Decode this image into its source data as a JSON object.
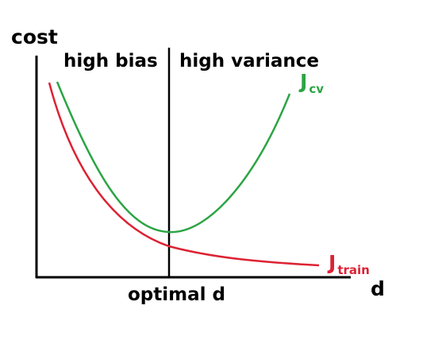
{
  "labels": {
    "y_axis": "cost",
    "x_axis": "d",
    "left_region": "high bias",
    "right_region": "high variance",
    "divider": "optimal d"
  },
  "curves": {
    "cv": {
      "main": "J",
      "sub": "cv",
      "color": "#2ca444"
    },
    "train": {
      "main": "J",
      "sub": "train",
      "color": "#dd2233"
    }
  },
  "colors": {
    "axis": "#000000"
  }
}
